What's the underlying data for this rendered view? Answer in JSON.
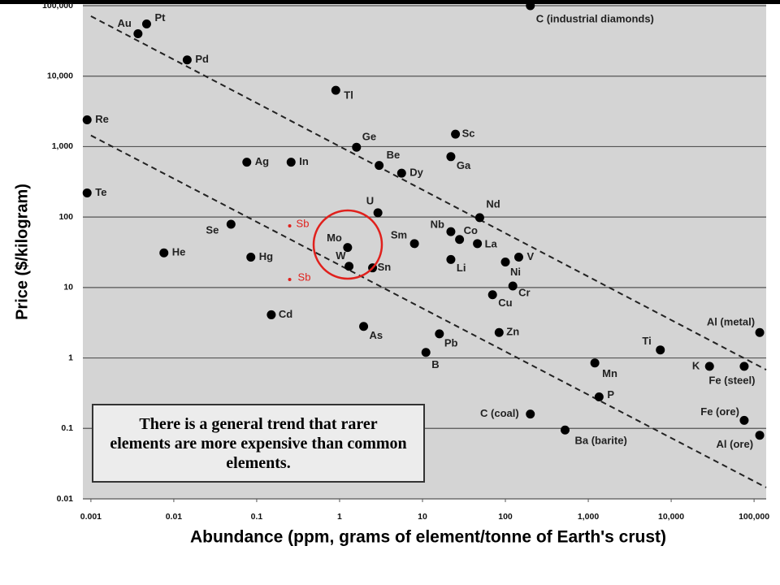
{
  "chart_data": {
    "type": "scatter",
    "xscale": "log",
    "yscale": "log",
    "grid": true,
    "x_label": "Abundance (ppm, grams of element/tonne of Earth's crust)",
    "y_label": "Price ($/kilogram)",
    "annotation": "There is a general trend that rarer elements are more expensive than common elements.",
    "xlim": [
      0.0008,
      140000
    ],
    "ylim": [
      0.01,
      100000
    ],
    "xticks": [
      0.001,
      0.01,
      0.1,
      1,
      10,
      100,
      {
        "value": 1000,
        "label": "1,000"
      },
      {
        "value": 10000,
        "label": "10,000"
      },
      {
        "value": 100000,
        "label": "100,000"
      }
    ],
    "yticks": [
      {
        "value": 100000,
        "label": "100,000"
      },
      {
        "value": 10000,
        "label": "10,000"
      },
      {
        "value": 1000,
        "label": "1,000"
      },
      100,
      10,
      1,
      0.1,
      0.01
    ],
    "trend_lines": [
      {
        "x": [
          0.001,
          140000
        ],
        "y": [
          71000,
          0.68
        ]
      },
      {
        "x": [
          0.001,
          140000
        ],
        "y": [
          1440,
          0.0145
        ]
      }
    ],
    "series": [
      {
        "color": "#000000",
        "labels": [
          "Au",
          "Pt",
          "Pd",
          "C (industrial diamonds)",
          "Tl",
          "Re",
          "Te",
          "Ge",
          "Sc",
          "Ga",
          "Ag",
          "In",
          "Be",
          "Dy",
          "U",
          "Nd",
          "Se",
          "Nb",
          "Co",
          "La",
          "Mo",
          "Sm",
          "He",
          "Hg",
          "V",
          "W",
          "Sn",
          "Li",
          "Ni",
          "Cr",
          "Cu",
          "Cd",
          "As",
          "Pb",
          "Zn",
          "Ti",
          "Al (metal)",
          "B",
          "Mn",
          "K",
          "Fe (steel)",
          "P",
          "C (coal)",
          "Ba (barite)",
          "Fe (ore)",
          "Al (ore)"
        ],
        "x": [
          0.0037,
          0.0047,
          0.0145,
          200,
          0.9,
          0.0009,
          0.0009,
          1.6,
          25,
          22,
          0.076,
          0.26,
          3,
          5.6,
          2.9,
          49,
          0.049,
          22,
          28,
          46,
          1.25,
          8,
          0.0076,
          0.085,
          145,
          1.3,
          2.5,
          22,
          100,
          123,
          70,
          0.15,
          1.95,
          16,
          84,
          7400,
          117000,
          11,
          1200,
          29000,
          76000,
          1350,
          200,
          525,
          76000,
          117000
        ],
        "y": [
          40000,
          55000,
          17000,
          100000,
          6300,
          2400,
          220,
          980,
          1500,
          720,
          600,
          600,
          540,
          420,
          115,
          98,
          79,
          62,
          48,
          42,
          37,
          42,
          31,
          27,
          27,
          20,
          19,
          25,
          23,
          10.5,
          7.9,
          4.1,
          2.8,
          2.2,
          2.3,
          1.3,
          2.3,
          1.2,
          0.85,
          0.76,
          0.76,
          0.28,
          0.16,
          0.095,
          0.13,
          0.08
        ]
      },
      {
        "color": "#e0201c",
        "labels": [
          "Sb",
          "Sb"
        ],
        "x": [
          0.25,
          0.25
        ],
        "y": [
          75,
          13
        ]
      }
    ]
  }
}
